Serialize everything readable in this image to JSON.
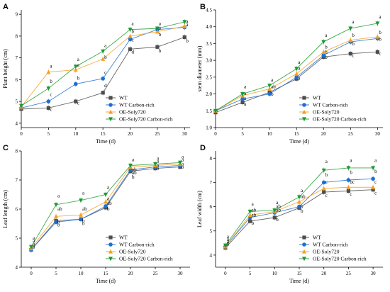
{
  "colors": {
    "WT": "#4d4d4d",
    "WT Carbon-rich": "#1f6fd1",
    "OE-Soly720": "#f5a020",
    "OE-Soly720 Carbon-rich": "#1a9a2e"
  },
  "markers": {
    "WT": "square",
    "WT Carbon-rich": "circle",
    "OE-Soly720": "triangle-up",
    "OE-Soly720 Carbon-rich": "triangle-down"
  },
  "chart_data": [
    {
      "panel": "A",
      "type": "line",
      "xlabel": "Time (d)",
      "ylabel": "Plant height (cm)",
      "xlim": [
        0,
        31
      ],
      "ylim": [
        3.8,
        9.2
      ],
      "xticks": [
        "0",
        "5",
        "10",
        "15",
        "20",
        "25",
        "30"
      ],
      "yticks": [
        "4",
        "5",
        "6",
        "7",
        "8",
        "9"
      ],
      "ytick_values": [
        4,
        5,
        6,
        7,
        8,
        9
      ],
      "x": [
        0,
        5,
        10,
        15,
        20,
        25,
        30
      ],
      "series": [
        {
          "name": "WT",
          "values": [
            4.65,
            4.7,
            5.0,
            5.4,
            7.4,
            7.5,
            7.95
          ]
        },
        {
          "name": "WT Carbon-rich",
          "values": [
            4.7,
            5.0,
            5.8,
            6.05,
            7.85,
            8.3,
            8.4
          ]
        },
        {
          "name": "OE-Soly720",
          "values": [
            4.75,
            6.35,
            6.45,
            6.95,
            8.0,
            8.2,
            8.45
          ]
        },
        {
          "name": "OE-Soly720 Carbon-rich",
          "values": [
            4.8,
            5.6,
            6.6,
            7.3,
            8.3,
            8.35,
            8.65
          ]
        }
      ],
      "letters": [
        {
          "x": 5,
          "labels": [
            {
              "text": "a",
              "y": 6.55
            },
            {
              "text": "b",
              "y": 5.85
            },
            {
              "text": "c",
              "y": 5.25
            },
            {
              "text": "c",
              "y": 4.55
            }
          ]
        },
        {
          "x": 10,
          "labels": [
            {
              "text": "a",
              "y": 6.85
            },
            {
              "text": "a",
              "y": 6.6
            },
            {
              "text": "b",
              "y": 6.0
            },
            {
              "text": "c",
              "y": 4.85
            }
          ]
        },
        {
          "x": 15,
          "labels": [
            {
              "text": "a",
              "y": 7.5
            },
            {
              "text": "b",
              "y": 6.95
            },
            {
              "text": "c",
              "y": 6.25
            },
            {
              "text": "d",
              "y": 5.65
            }
          ]
        },
        {
          "x": 20,
          "labels": [
            {
              "text": "a",
              "y": 8.5
            },
            {
              "text": "b",
              "y": 8.15
            },
            {
              "text": "c",
              "y": 7.75
            },
            {
              "text": "d",
              "y": 7.2
            }
          ]
        },
        {
          "x": 25,
          "labels": [
            {
              "text": "a",
              "y": 8.5
            },
            {
              "text": "a",
              "y": 8.3
            },
            {
              "text": "b",
              "y": 8.0
            },
            {
              "text": "b",
              "y": 7.25
            }
          ]
        },
        {
          "x": 30,
          "labels": [
            {
              "text": "a",
              "y": 8.6
            },
            {
              "text": "a",
              "y": 8.45
            },
            {
              "text": "b",
              "y": 7.7
            }
          ]
        }
      ],
      "legend": "bottom-right"
    },
    {
      "panel": "B",
      "type": "line",
      "xlabel": "Time (d)",
      "ylabel": "stem diameter (mm)",
      "xlim": [
        0,
        31
      ],
      "ylim": [
        1.0,
        4.5
      ],
      "xticks": [
        "0",
        "5",
        "10",
        "15",
        "20",
        "25",
        "30"
      ],
      "yticks": [
        "1.0",
        "1.5",
        "2.0",
        "2.5",
        "3.0",
        "3.5",
        "4.0",
        "4.5"
      ],
      "ytick_values": [
        1.0,
        1.5,
        2.0,
        2.5,
        3.0,
        3.5,
        4.0,
        4.5
      ],
      "x": [
        0,
        5,
        10,
        15,
        20,
        25,
        30
      ],
      "series": [
        {
          "name": "WT",
          "values": [
            1.45,
            1.75,
            2.05,
            2.45,
            3.1,
            3.2,
            3.25
          ]
        },
        {
          "name": "WT Carbon-rich",
          "values": [
            1.5,
            1.85,
            2.0,
            2.5,
            3.15,
            3.55,
            3.65
          ]
        },
        {
          "name": "OE-Soly720",
          "values": [
            1.5,
            1.95,
            2.15,
            2.6,
            3.25,
            3.6,
            3.7
          ]
        },
        {
          "name": "OE-Soly720 Carbon-rich",
          "values": [
            1.5,
            2.0,
            2.25,
            2.75,
            3.55,
            3.95,
            4.1
          ]
        }
      ],
      "letters": [
        {
          "x": 5,
          "labels": [
            {
              "text": "a",
              "y": 2.17
            },
            {
              "text": "a",
              "y": 1.97
            },
            {
              "text": "a",
              "y": 1.82
            },
            {
              "text": "a",
              "y": 1.65
            }
          ]
        },
        {
          "x": 10,
          "labels": [
            {
              "text": "ab",
              "y": 2.17
            },
            {
              "text": "a",
              "y": 2.37
            },
            {
              "text": "b",
              "y": 1.95
            }
          ]
        },
        {
          "x": 15,
          "labels": [
            {
              "text": "a",
              "y": 2.9
            },
            {
              "text": "a",
              "y": 2.72
            },
            {
              "text": "a",
              "y": 2.42
            }
          ]
        },
        {
          "x": 20,
          "labels": [
            {
              "text": "a",
              "y": 3.7
            },
            {
              "text": "b",
              "y": 3.35
            },
            {
              "text": "b",
              "y": 3.2
            },
            {
              "text": "b",
              "y": 3.05
            }
          ]
        },
        {
          "x": 25,
          "labels": [
            {
              "text": "a",
              "y": 4.1
            },
            {
              "text": "b",
              "y": 3.7
            },
            {
              "text": "b",
              "y": 3.45
            },
            {
              "text": "c",
              "y": 3.1
            }
          ]
        },
        {
          "x": 30,
          "labels": [
            {
              "text": "a",
              "y": 4.25
            },
            {
              "text": "b",
              "y": 3.78
            },
            {
              "text": "b",
              "y": 3.58
            },
            {
              "text": "c",
              "y": 3.15
            }
          ]
        }
      ],
      "legend": "bottom-right"
    },
    {
      "panel": "C",
      "type": "line",
      "xlabel": "Time (d)",
      "ylabel": "Leaf length (cm)",
      "xlim": [
        -2,
        32
      ],
      "ylim": [
        4.0,
        8.0
      ],
      "xticks": [
        "0",
        "5",
        "10",
        "15",
        "20",
        "25",
        "30"
      ],
      "yticks": [
        "4",
        "5",
        "6",
        "7",
        "8"
      ],
      "ytick_values": [
        4,
        5,
        6,
        7,
        8
      ],
      "x": [
        0,
        5,
        10,
        15,
        20,
        25,
        30
      ],
      "series": [
        {
          "name": "WT",
          "values": [
            4.6,
            5.6,
            5.65,
            6.05,
            7.3,
            7.4,
            7.45
          ]
        },
        {
          "name": "WT Carbon-rich",
          "values": [
            4.6,
            5.55,
            5.65,
            6.1,
            7.35,
            7.45,
            7.5
          ]
        },
        {
          "name": "OE-Soly720",
          "values": [
            4.65,
            5.75,
            5.8,
            6.25,
            7.45,
            7.5,
            7.55
          ]
        },
        {
          "name": "OE-Soly720 Carbon-rich",
          "values": [
            4.7,
            6.15,
            6.3,
            6.5,
            7.5,
            7.55,
            7.6
          ]
        }
      ],
      "letters": [
        {
          "x": 0,
          "labels": [
            {
              "text": "a",
              "y": 4.95
            },
            {
              "text": "a",
              "y": 4.85
            },
            {
              "text": "a",
              "y": 4.75
            },
            {
              "text": "a",
              "y": 4.65
            }
          ]
        },
        {
          "x": 5,
          "labels": [
            {
              "text": "a",
              "y": 6.4
            },
            {
              "text": "ab",
              "y": 5.95
            },
            {
              "text": "b",
              "y": 5.5
            },
            {
              "text": "b",
              "y": 5.4
            }
          ]
        },
        {
          "x": 10,
          "labels": [
            {
              "text": "a",
              "y": 6.5
            },
            {
              "text": "ab",
              "y": 5.95
            },
            {
              "text": "b",
              "y": 5.55
            },
            {
              "text": "b",
              "y": 5.45
            }
          ]
        },
        {
          "x": 15,
          "labels": [
            {
              "text": "a",
              "y": 6.7
            },
            {
              "text": "a",
              "y": 6.3
            },
            {
              "text": "ab",
              "y": 6.15
            },
            {
              "text": "b",
              "y": 5.95
            }
          ]
        },
        {
          "x": 20,
          "labels": [
            {
              "text": "a",
              "y": 7.65
            },
            {
              "text": "ab",
              "y": 7.3
            },
            {
              "text": "ab",
              "y": 7.2
            },
            {
              "text": "b",
              "y": 7.05
            }
          ]
        },
        {
          "x": 25,
          "labels": [
            {
              "text": "a",
              "y": 7.7
            },
            {
              "text": "a",
              "y": 7.6
            },
            {
              "text": "a",
              "y": 7.45
            },
            {
              "text": "a",
              "y": 7.35
            }
          ]
        },
        {
          "x": 30,
          "labels": [
            {
              "text": "a",
              "y": 7.75
            },
            {
              "text": "a",
              "y": 7.65
            },
            {
              "text": "a",
              "y": 7.5
            },
            {
              "text": "a",
              "y": 7.4
            }
          ]
        }
      ],
      "legend": "bottom-right"
    },
    {
      "panel": "D",
      "type": "line",
      "xlabel": "Time (d)",
      "ylabel": "Leaf width (cm)",
      "xlim": [
        -2,
        32
      ],
      "ylim": [
        3.5,
        8.3
      ],
      "xticks": [
        "0",
        "5",
        "10",
        "15",
        "20",
        "25",
        "30"
      ],
      "yticks": [
        "4",
        "5",
        "6",
        "7",
        "8"
      ],
      "ytick_values": [
        4,
        5,
        6,
        7,
        8
      ],
      "x": [
        0,
        5,
        10,
        15,
        20,
        25,
        30
      ],
      "series": [
        {
          "name": "WT",
          "values": [
            4.3,
            5.4,
            5.55,
            5.95,
            6.6,
            6.65,
            6.7
          ]
        },
        {
          "name": "WT Carbon-rich",
          "values": [
            4.35,
            5.55,
            5.75,
            6.0,
            7.0,
            7.1,
            7.15
          ]
        },
        {
          "name": "OE-Soly720",
          "values": [
            4.35,
            5.65,
            5.8,
            6.2,
            6.75,
            6.8,
            6.8
          ]
        },
        {
          "name": "OE-Soly720 Carbon-rich",
          "values": [
            4.4,
            5.8,
            5.85,
            6.4,
            7.5,
            7.6,
            7.6
          ]
        }
      ],
      "letters": [
        {
          "x": 0,
          "labels": [
            {
              "text": "a",
              "y": 4.7
            },
            {
              "text": "a",
              "y": 4.6
            },
            {
              "text": "a",
              "y": 4.5
            },
            {
              "text": "a",
              "y": 4.4
            }
          ]
        },
        {
          "x": 5,
          "labels": [
            {
              "text": "a",
              "y": 6.05
            },
            {
              "text": "ab",
              "y": 5.8
            },
            {
              "text": "ab",
              "y": 5.6
            },
            {
              "text": "b",
              "y": 5.25
            }
          ]
        },
        {
          "x": 10,
          "labels": [
            {
              "text": "a",
              "y": 6.1
            },
            {
              "text": "ab",
              "y": 5.95
            },
            {
              "text": "ab",
              "y": 5.8
            },
            {
              "text": "b",
              "y": 5.4
            }
          ]
        },
        {
          "x": 15,
          "labels": [
            {
              "text": "a",
              "y": 6.6
            },
            {
              "text": "ab",
              "y": 6.35
            },
            {
              "text": "b",
              "y": 5.95
            },
            {
              "text": "b",
              "y": 5.75
            }
          ]
        },
        {
          "x": 20,
          "labels": [
            {
              "text": "a",
              "y": 7.8
            },
            {
              "text": "b",
              "y": 7.25
            },
            {
              "text": "c",
              "y": 6.95
            },
            {
              "text": "c",
              "y": 6.4
            }
          ]
        },
        {
          "x": 25,
          "labels": [
            {
              "text": "a",
              "y": 7.85
            },
            {
              "text": "b",
              "y": 7.35
            },
            {
              "text": "bc",
              "y": 6.95
            },
            {
              "text": "c",
              "y": 6.45
            }
          ]
        },
        {
          "x": 30,
          "labels": [
            {
              "text": "a",
              "y": 7.85
            },
            {
              "text": "b",
              "y": 7.4
            },
            {
              "text": "c",
              "y": 6.95
            },
            {
              "text": "c",
              "y": 6.5
            }
          ]
        }
      ],
      "legend": "bottom-right"
    }
  ]
}
